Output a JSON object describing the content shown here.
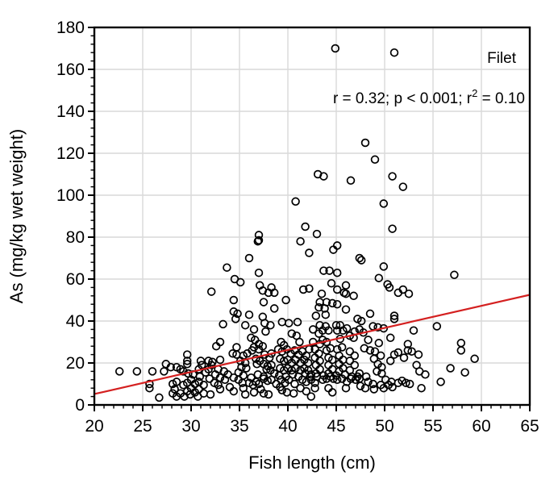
{
  "figure": {
    "background": "#ffffff"
  },
  "chart_data": {
    "type": "scatter",
    "series_label": "Filet",
    "annotation": {
      "part1": "r = 0.32; p < 0.001; r",
      "sup": "2",
      "part2": " = 0.10"
    },
    "xlabel": "Fish length (cm)",
    "ylabel": "As (mg/kg wet weight)",
    "xlim": [
      20,
      65
    ],
    "ylim": [
      0,
      180
    ],
    "x_major_ticks": [
      20,
      25,
      30,
      35,
      40,
      45,
      50,
      55,
      60,
      65
    ],
    "y_major_ticks": [
      0,
      20,
      40,
      60,
      80,
      100,
      120,
      140,
      160,
      180
    ],
    "x_minor_step": 1,
    "y_minor_step": 4,
    "grid": true,
    "legend_position": "none",
    "colors": {
      "point_stroke": "#000000",
      "trend_line": "#d42020",
      "grid_line": "#d9d9d9",
      "axis": "#000000",
      "text": "#000000"
    },
    "trend": {
      "x1": 20,
      "y1": 5.2,
      "x2": 65,
      "y2": 52.5
    },
    "points": [
      [
        44.9,
        170
      ],
      [
        51,
        168
      ],
      [
        48,
        125
      ],
      [
        49,
        117
      ],
      [
        43.1,
        110
      ],
      [
        43.7,
        109
      ],
      [
        46.5,
        107
      ],
      [
        50.8,
        109
      ],
      [
        51.9,
        104
      ],
      [
        40.8,
        97
      ],
      [
        49.9,
        96
      ],
      [
        41.8,
        85
      ],
      [
        50.8,
        84
      ],
      [
        43,
        81.5
      ],
      [
        37,
        81
      ],
      [
        37,
        78.5
      ],
      [
        36.9,
        78
      ],
      [
        41.3,
        78
      ],
      [
        45.1,
        76
      ],
      [
        44.7,
        74
      ],
      [
        42.2,
        72.5
      ],
      [
        47.4,
        70
      ],
      [
        47.6,
        69
      ],
      [
        36,
        70
      ],
      [
        33.7,
        65.5
      ],
      [
        49.9,
        66
      ],
      [
        43.7,
        64
      ],
      [
        44.3,
        64
      ],
      [
        37,
        63
      ],
      [
        45.1,
        63
      ],
      [
        57.2,
        62
      ],
      [
        34.5,
        60
      ],
      [
        49.4,
        60.5
      ],
      [
        35.1,
        58.5
      ],
      [
        44.5,
        58
      ],
      [
        37.1,
        57
      ],
      [
        46,
        57
      ],
      [
        50.3,
        57.5
      ],
      [
        50.5,
        56
      ],
      [
        45.1,
        55
      ],
      [
        41.6,
        55
      ],
      [
        42.2,
        55.5
      ],
      [
        38.3,
        56
      ],
      [
        32.1,
        54
      ],
      [
        37.4,
        54.5
      ],
      [
        51.9,
        55
      ],
      [
        46,
        53
      ],
      [
        43.5,
        53
      ],
      [
        38,
        53.5
      ],
      [
        38.6,
        53.5
      ],
      [
        45.8,
        53.5
      ],
      [
        46.8,
        52
      ],
      [
        51.4,
        53.5
      ],
      [
        52.5,
        53
      ],
      [
        34.4,
        50
      ],
      [
        37.5,
        49
      ],
      [
        39.8,
        50
      ],
      [
        43.3,
        49
      ],
      [
        44,
        49
      ],
      [
        44.6,
        48.5
      ],
      [
        45.1,
        48
      ],
      [
        43.2,
        46.5
      ],
      [
        43.8,
        46
      ],
      [
        46,
        45.5
      ],
      [
        38.6,
        46
      ],
      [
        34.4,
        44.5
      ],
      [
        34.8,
        43.5
      ],
      [
        36,
        43
      ],
      [
        42.9,
        42.5
      ],
      [
        43.9,
        43
      ],
      [
        48.5,
        43.5
      ],
      [
        51,
        42.5
      ],
      [
        51,
        41
      ],
      [
        34.6,
        41
      ],
      [
        37.4,
        42
      ],
      [
        47.2,
        41
      ],
      [
        47.6,
        40
      ],
      [
        33.3,
        38.5
      ],
      [
        35.6,
        38
      ],
      [
        36.5,
        36
      ],
      [
        37.6,
        39
      ],
      [
        38.2,
        38
      ],
      [
        37.7,
        35
      ],
      [
        39.4,
        39.5
      ],
      [
        40.1,
        39
      ],
      [
        41,
        39.5
      ],
      [
        42.6,
        36
      ],
      [
        43.3,
        38
      ],
      [
        43.9,
        37.5
      ],
      [
        43.6,
        35.5
      ],
      [
        44.2,
        35.5
      ],
      [
        43.2,
        34
      ],
      [
        45,
        38
      ],
      [
        45.4,
        38
      ],
      [
        45.1,
        35.5
      ],
      [
        45.7,
        35.5
      ],
      [
        46.1,
        36.5
      ],
      [
        46.9,
        35
      ],
      [
        47.4,
        36
      ],
      [
        47.8,
        34.5
      ],
      [
        48.8,
        37.5
      ],
      [
        49.3,
        37
      ],
      [
        49.9,
        36.5
      ],
      [
        53,
        35.5
      ],
      [
        55.4,
        37.5
      ],
      [
        40.4,
        34
      ],
      [
        40.9,
        33
      ],
      [
        33,
        30
      ],
      [
        36.2,
        32
      ],
      [
        36.6,
        31
      ],
      [
        37,
        29
      ],
      [
        39.3,
        30
      ],
      [
        39.6,
        28.5
      ],
      [
        41.2,
        30
      ],
      [
        42.6,
        30
      ],
      [
        43.6,
        31
      ],
      [
        44,
        30
      ],
      [
        43.3,
        29
      ],
      [
        45.4,
        31.5
      ],
      [
        46.4,
        33
      ],
      [
        46.8,
        32
      ],
      [
        48.3,
        31
      ],
      [
        49.4,
        29.5
      ],
      [
        50.6,
        32
      ],
      [
        52.4,
        29
      ],
      [
        57.9,
        29.5
      ],
      [
        57.9,
        26
      ],
      [
        32.6,
        28
      ],
      [
        29.6,
        24
      ],
      [
        34.3,
        24.5
      ],
      [
        34.7,
        24
      ],
      [
        35.4,
        23.5
      ],
      [
        35.8,
        24.5
      ],
      [
        36.3,
        26
      ],
      [
        36.5,
        27.5
      ],
      [
        37,
        26.5
      ],
      [
        37.4,
        28
      ],
      [
        34.7,
        27.5
      ],
      [
        37.6,
        24
      ],
      [
        38.1,
        22.5
      ],
      [
        38.3,
        24.5
      ],
      [
        39,
        26.5
      ],
      [
        39.4,
        25.5
      ],
      [
        39.9,
        26.5
      ],
      [
        40.3,
        24.5
      ],
      [
        40.7,
        26
      ],
      [
        41.1,
        24
      ],
      [
        41.5,
        25.5
      ],
      [
        41.9,
        23.5
      ],
      [
        42.2,
        26.5
      ],
      [
        42.8,
        26.5
      ],
      [
        43.2,
        24.5
      ],
      [
        44,
        26
      ],
      [
        44.4,
        27
      ],
      [
        45.1,
        26.5
      ],
      [
        45.6,
        27.5
      ],
      [
        46.4,
        25.5
      ],
      [
        47.9,
        27
      ],
      [
        48.5,
        26
      ],
      [
        49,
        25.5
      ],
      [
        49.6,
        23.5
      ],
      [
        51,
        24
      ],
      [
        51.4,
        25
      ],
      [
        52.4,
        26
      ],
      [
        52.8,
        25.5
      ],
      [
        53.5,
        24
      ],
      [
        45.3,
        23.5
      ],
      [
        46.9,
        23.5
      ],
      [
        48.9,
        22
      ],
      [
        52,
        22.5
      ],
      [
        59.3,
        22
      ],
      [
        22.6,
        16
      ],
      [
        24.4,
        16
      ],
      [
        26,
        16
      ],
      [
        27.4,
        19.5
      ],
      [
        27.2,
        16
      ],
      [
        27.9,
        18
      ],
      [
        28.5,
        18
      ],
      [
        28.9,
        17
      ],
      [
        29.6,
        21
      ],
      [
        29.6,
        19.5
      ],
      [
        29.2,
        16
      ],
      [
        29.7,
        15
      ],
      [
        31,
        21
      ],
      [
        31.1,
        19
      ],
      [
        30.8,
        17
      ],
      [
        31.8,
        21
      ],
      [
        32.2,
        20.5
      ],
      [
        32.1,
        19
      ],
      [
        31.8,
        17
      ],
      [
        33,
        21.5
      ],
      [
        32.8,
        17
      ],
      [
        35.1,
        21
      ],
      [
        35.6,
        20
      ],
      [
        35.2,
        18
      ],
      [
        35.7,
        17.5
      ],
      [
        36.7,
        22
      ],
      [
        37.1,
        21
      ],
      [
        36.8,
        19.5
      ],
      [
        37.5,
        19.5
      ],
      [
        37.9,
        18.5
      ],
      [
        38.3,
        19
      ],
      [
        37.8,
        17
      ],
      [
        38.2,
        16.5
      ],
      [
        39.2,
        22
      ],
      [
        39.6,
        21
      ],
      [
        40,
        21.5
      ],
      [
        40.4,
        20
      ],
      [
        40.8,
        21.5
      ],
      [
        41.3,
        20
      ],
      [
        41.7,
        21.5
      ],
      [
        42.1,
        20
      ],
      [
        39.2,
        17.5
      ],
      [
        39.6,
        16.5
      ],
      [
        40,
        17.5
      ],
      [
        40.4,
        16.5
      ],
      [
        40.8,
        17.5
      ],
      [
        41.3,
        16.5
      ],
      [
        41.7,
        17.5
      ],
      [
        42.1,
        16.5
      ],
      [
        42.8,
        22.5
      ],
      [
        43.3,
        21
      ],
      [
        42.9,
        19
      ],
      [
        43.3,
        17
      ],
      [
        44.2,
        22.5
      ],
      [
        44.6,
        21.5
      ],
      [
        44.2,
        19
      ],
      [
        44.6,
        17
      ],
      [
        45.7,
        21.5
      ],
      [
        45.3,
        19.5
      ],
      [
        45.7,
        17.5
      ],
      [
        46.4,
        21
      ],
      [
        46.9,
        19
      ],
      [
        49.3,
        19.5
      ],
      [
        49.7,
        18
      ],
      [
        50.6,
        21
      ],
      [
        53.3,
        19
      ],
      [
        56.8,
        17.5
      ],
      [
        58.3,
        15.5
      ],
      [
        42.4,
        14.5
      ],
      [
        54.2,
        14.5
      ],
      [
        42.9,
        15
      ],
      [
        44.2,
        15
      ],
      [
        45.3,
        16
      ],
      [
        46.4,
        16.5
      ],
      [
        47.4,
        15
      ],
      [
        49.2,
        16
      ],
      [
        49.7,
        15
      ],
      [
        53.6,
        16
      ],
      [
        38.6,
        15
      ],
      [
        39.1,
        14
      ],
      [
        39.8,
        13.5
      ],
      [
        40.5,
        14.5
      ],
      [
        41.1,
        13.5
      ],
      [
        41.8,
        15
      ],
      [
        42.3,
        13.5
      ],
      [
        43,
        13.5
      ],
      [
        43.7,
        14
      ],
      [
        44.4,
        13.5
      ],
      [
        45,
        14
      ],
      [
        45.9,
        14.5
      ],
      [
        46.6,
        13.5
      ],
      [
        47.2,
        13.5
      ],
      [
        48.1,
        13.5
      ],
      [
        36.9,
        14.5
      ],
      [
        37.5,
        13.5
      ],
      [
        36.2,
        13
      ],
      [
        35.4,
        14
      ],
      [
        34.4,
        13
      ],
      [
        33.8,
        14.5
      ],
      [
        33,
        13
      ],
      [
        31.9,
        12.5
      ],
      [
        30.9,
        13.5
      ],
      [
        30.2,
        14.5
      ],
      [
        31.5,
        15.5
      ],
      [
        32.5,
        14.5
      ],
      [
        33.4,
        16
      ],
      [
        34.9,
        15.5
      ],
      [
        37.5,
        12.5
      ],
      [
        44,
        12.5
      ],
      [
        44.7,
        12.5
      ],
      [
        45.6,
        12.5
      ],
      [
        46.5,
        12.5
      ],
      [
        47.4,
        12.5
      ],
      [
        25.7,
        10
      ],
      [
        28.1,
        10
      ],
      [
        28.5,
        11
      ],
      [
        29.2,
        9.5
      ],
      [
        29.6,
        10.5
      ],
      [
        30,
        12
      ],
      [
        30.4,
        10
      ],
      [
        30.8,
        11
      ],
      [
        31.3,
        9.5
      ],
      [
        32.4,
        10.5
      ],
      [
        32.8,
        9.5
      ],
      [
        33.5,
        12
      ],
      [
        34.9,
        12
      ],
      [
        35.3,
        10.5
      ],
      [
        36,
        10.5
      ],
      [
        36.4,
        9.5
      ],
      [
        36.7,
        11
      ],
      [
        37,
        10
      ],
      [
        37.9,
        11.5
      ],
      [
        38.3,
        12
      ],
      [
        38.8,
        10
      ],
      [
        39.2,
        8.5
      ],
      [
        39.3,
        12
      ],
      [
        39.7,
        10.5
      ],
      [
        40.1,
        12
      ],
      [
        40.7,
        10
      ],
      [
        41.5,
        12
      ],
      [
        41.9,
        11
      ],
      [
        42.4,
        12
      ],
      [
        42.8,
        10.5
      ],
      [
        43.6,
        12
      ],
      [
        45.1,
        12
      ],
      [
        46.1,
        11
      ],
      [
        47,
        12
      ],
      [
        47.5,
        9
      ],
      [
        48.3,
        11
      ],
      [
        48.8,
        10
      ],
      [
        49.6,
        9.5
      ],
      [
        50.1,
        12
      ],
      [
        50.7,
        11
      ],
      [
        50.4,
        9.5
      ],
      [
        51.4,
        10.5
      ],
      [
        51.8,
        11.5
      ],
      [
        52.2,
        10.5
      ],
      [
        52.6,
        10
      ],
      [
        55.8,
        11
      ],
      [
        34,
        8.5
      ],
      [
        25.7,
        8
      ],
      [
        26.7,
        3.5
      ],
      [
        28.3,
        7.5
      ],
      [
        28.1,
        5.5
      ],
      [
        28.5,
        4
      ],
      [
        28.9,
        5.5
      ],
      [
        29.6,
        6.5
      ],
      [
        29.3,
        4
      ],
      [
        30,
        8
      ],
      [
        29.9,
        5
      ],
      [
        30.4,
        6
      ],
      [
        30.8,
        7.5
      ],
      [
        30.7,
        4
      ],
      [
        31.3,
        5.5
      ],
      [
        32,
        5
      ],
      [
        33,
        7.5
      ],
      [
        34.4,
        6.5
      ],
      [
        35.4,
        8
      ],
      [
        35.6,
        5
      ],
      [
        36.5,
        6
      ],
      [
        37.2,
        7.5
      ],
      [
        37.5,
        5.5
      ],
      [
        38,
        5
      ],
      [
        39.4,
        7
      ],
      [
        39.9,
        6
      ],
      [
        40.6,
        5.5
      ],
      [
        41.3,
        8
      ],
      [
        41.9,
        6.5
      ],
      [
        42.4,
        4
      ],
      [
        42.8,
        8
      ],
      [
        44.2,
        8
      ],
      [
        44.6,
        6
      ],
      [
        46,
        8
      ],
      [
        48,
        8
      ],
      [
        48.9,
        7.5
      ],
      [
        49.9,
        8
      ],
      [
        50.8,
        8.5
      ],
      [
        53.8,
        8
      ]
    ]
  }
}
